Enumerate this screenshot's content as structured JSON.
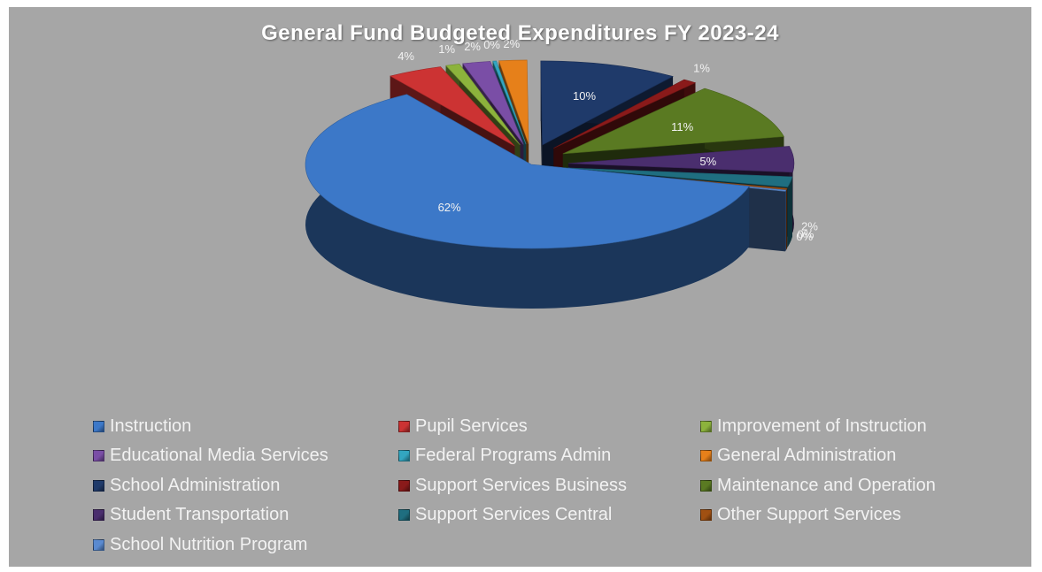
{
  "chart_data": {
    "type": "pie",
    "title": "General Fund Budgeted Expenditures FY 2023-24",
    "legend_position": "bottom",
    "categories": [
      "Instruction",
      "Pupil Services",
      "Improvement of Instruction",
      "Educational Media Services",
      "Federal Programs Admin",
      "General Administration",
      "School Administration",
      "Support Services Business",
      "Maintenance and Operation",
      "Student Transportation",
      "Support Services Central",
      "Other Support Services",
      "School Nutrition Program"
    ],
    "values": [
      62,
      4,
      1,
      2,
      0,
      2,
      10,
      1,
      11,
      5,
      2,
      0,
      0
    ],
    "data_labels": [
      "62%",
      "4%",
      "1%",
      "2%",
      "0%",
      "2%",
      "10%",
      "1%",
      "11%",
      "5%",
      "2%",
      "0%",
      "0%"
    ],
    "colors": [
      "#3c78c8",
      "#cc3333",
      "#8cb33c",
      "#7a4ea6",
      "#33a6c0",
      "#e6801a",
      "#1f3a6a",
      "#8a1a1a",
      "#5a7a22",
      "#4a2e6e",
      "#1f6e80",
      "#a05012",
      "#5a8ad0"
    ]
  }
}
